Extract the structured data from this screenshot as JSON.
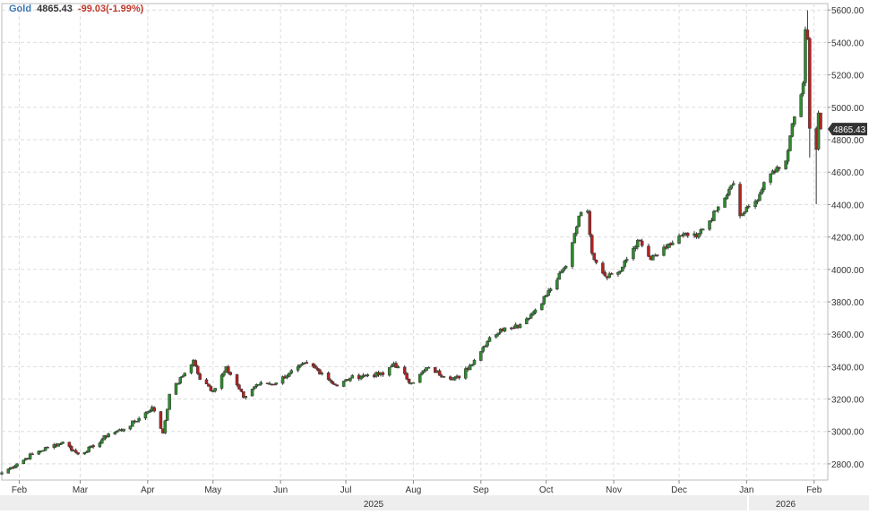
{
  "legend": {
    "symbol": "Gold",
    "last": "4865.43",
    "change": "-99.03(-1.99%)"
  },
  "colors": {
    "up": "#2e8b2e",
    "down": "#b22222",
    "wick": "#333333",
    "grid": "#dddddd",
    "last_badge": "#333333",
    "axis_band": "#eeeeee"
  },
  "chart_data": {
    "type": "candlestick",
    "y_axis": {
      "range": [
        2700,
        5640
      ],
      "ticks": [
        "2800.00",
        "3000.00",
        "3200.00",
        "3400.00",
        "3600.00",
        "3800.00",
        "4000.00",
        "4200.00",
        "4400.00",
        "4600.00",
        "4800.00",
        "5000.00",
        "5200.00",
        "5400.00",
        "5600.00"
      ],
      "last_label": "4865.43",
      "last_value": 4865.43
    },
    "x_axis": {
      "start": "2025-01-24",
      "end": "2026-02-04",
      "month_labels": [
        {
          "label": "Feb",
          "date": "2025-02-01"
        },
        {
          "label": "Mar",
          "date": "2025-03-01"
        },
        {
          "label": "Apr",
          "date": "2025-04-01"
        },
        {
          "label": "May",
          "date": "2025-05-01"
        },
        {
          "label": "Jun",
          "date": "2025-06-01"
        },
        {
          "label": "Jul",
          "date": "2025-07-01"
        },
        {
          "label": "Aug",
          "date": "2025-08-01"
        },
        {
          "label": "Sep",
          "date": "2025-09-01"
        },
        {
          "label": "Oct",
          "date": "2025-10-01"
        },
        {
          "label": "Nov",
          "date": "2025-11-01"
        },
        {
          "label": "Dec",
          "date": "2025-12-01"
        },
        {
          "label": "Jan",
          "date": "2026-01-01"
        },
        {
          "label": "Feb",
          "date": "2026-02-01"
        }
      ],
      "year_labels": [
        {
          "label": "2025",
          "date": "2025-07-01"
        },
        {
          "label": "2026",
          "date": "2026-01-19"
        }
      ]
    },
    "grid": true,
    "anchors": [
      [
        "2025-01-24",
        2745
      ],
      [
        "2025-01-31",
        2800
      ],
      [
        "2025-02-07",
        2860
      ],
      [
        "2025-02-14",
        2900
      ],
      [
        "2025-02-21",
        2935
      ],
      [
        "2025-02-28",
        2860
      ],
      [
        "2025-03-07",
        2905
      ],
      [
        "2025-03-14",
        2985
      ],
      [
        "2025-03-21",
        3015
      ],
      [
        "2025-03-28",
        3080
      ],
      [
        "2025-04-03",
        3150
      ],
      [
        "2025-04-08",
        2990
      ],
      [
        "2025-04-11",
        3230
      ],
      [
        "2025-04-17",
        3340
      ],
      [
        "2025-04-22",
        3440
      ],
      [
        "2025-04-25",
        3320
      ],
      [
        "2025-05-01",
        3250
      ],
      [
        "2025-05-07",
        3400
      ],
      [
        "2025-05-15",
        3210
      ],
      [
        "2025-05-21",
        3290
      ],
      [
        "2025-05-30",
        3300
      ],
      [
        "2025-06-05",
        3360
      ],
      [
        "2025-06-13",
        3420
      ],
      [
        "2025-06-20",
        3360
      ],
      [
        "2025-06-27",
        3280
      ],
      [
        "2025-07-03",
        3330
      ],
      [
        "2025-07-11",
        3350
      ],
      [
        "2025-07-18",
        3350
      ],
      [
        "2025-07-23",
        3420
      ],
      [
        "2025-07-31",
        3300
      ],
      [
        "2025-08-08",
        3395
      ],
      [
        "2025-08-15",
        3340
      ],
      [
        "2025-08-22",
        3330
      ],
      [
        "2025-08-29",
        3440
      ],
      [
        "2025-09-05",
        3580
      ],
      [
        "2025-09-12",
        3640
      ],
      [
        "2025-09-19",
        3660
      ],
      [
        "2025-09-26",
        3750
      ],
      [
        "2025-10-03",
        3880
      ],
      [
        "2025-10-10",
        4020
      ],
      [
        "2025-10-16",
        4330
      ],
      [
        "2025-10-20",
        4360
      ],
      [
        "2025-10-22",
        4100
      ],
      [
        "2025-10-28",
        3960
      ],
      [
        "2025-11-04",
        3990
      ],
      [
        "2025-11-12",
        4180
      ],
      [
        "2025-11-18",
        4060
      ],
      [
        "2025-11-25",
        4130
      ],
      [
        "2025-12-02",
        4210
      ],
      [
        "2025-12-09",
        4200
      ],
      [
        "2025-12-15",
        4300
      ],
      [
        "2025-12-22",
        4440
      ],
      [
        "2025-12-26",
        4530
      ],
      [
        "2025-12-29",
        4330
      ],
      [
        "2026-01-05",
        4420
      ],
      [
        "2026-01-12",
        4590
      ],
      [
        "2026-01-19",
        4670
      ],
      [
        "2026-01-22",
        4900
      ],
      [
        "2026-01-27",
        5150
      ],
      [
        "2026-01-28",
        5480
      ],
      [
        "2026-01-29",
        5420
      ],
      [
        "2026-01-30",
        4870
      ],
      [
        "2026-02-02",
        4740
      ],
      [
        "2026-02-03",
        4965
      ],
      [
        "2026-02-04",
        4865.43
      ]
    ]
  }
}
